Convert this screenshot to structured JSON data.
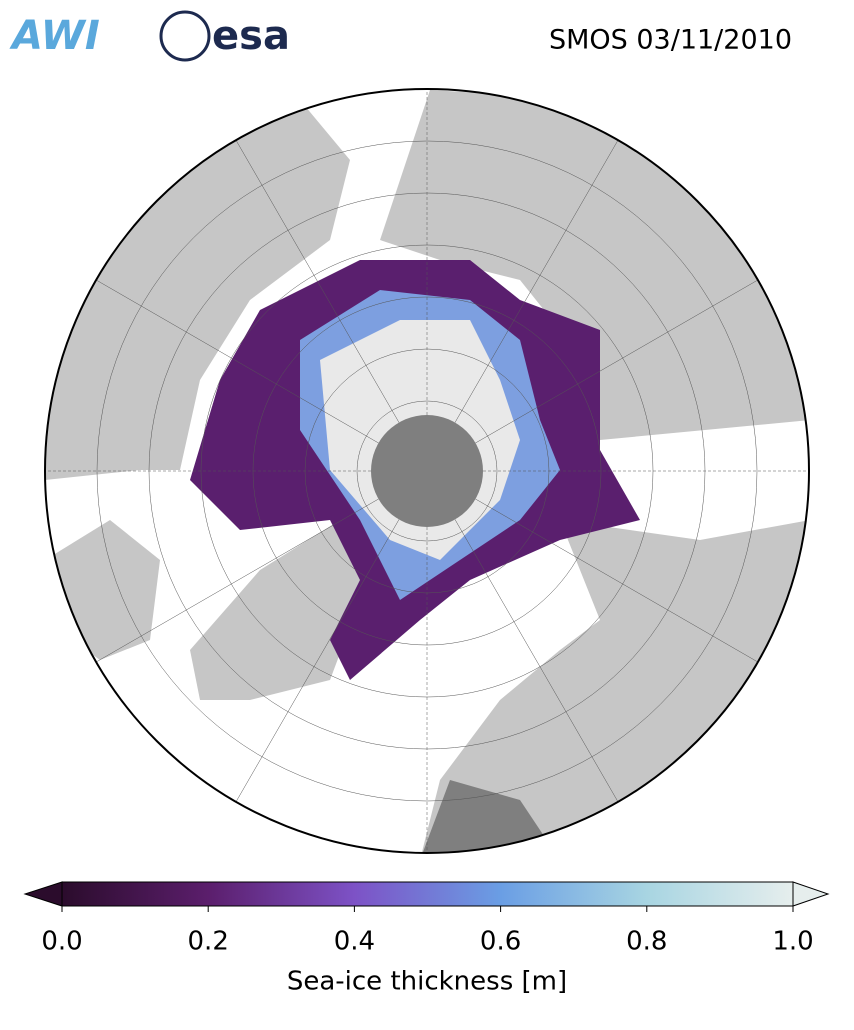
{
  "header": {
    "logos": [
      "AWI",
      "esa"
    ],
    "title": "SMOS 03/11/2010"
  },
  "colorbar": {
    "label": "Sea-ice thickness [m]",
    "lim": [
      0,
      1
    ],
    "ticks": [
      {
        "value": 0,
        "label": "0.0"
      },
      0.2,
      0.4,
      0.6,
      0.8,
      {
        "value": 1,
        "label": "1.0"
      }
    ],
    "colors": [
      "#2b0c2c",
      "#5b1e6c",
      "#7d52c6",
      "#6a9ee4",
      "#a8d5e2",
      "#e6eeed"
    ]
  }
}
